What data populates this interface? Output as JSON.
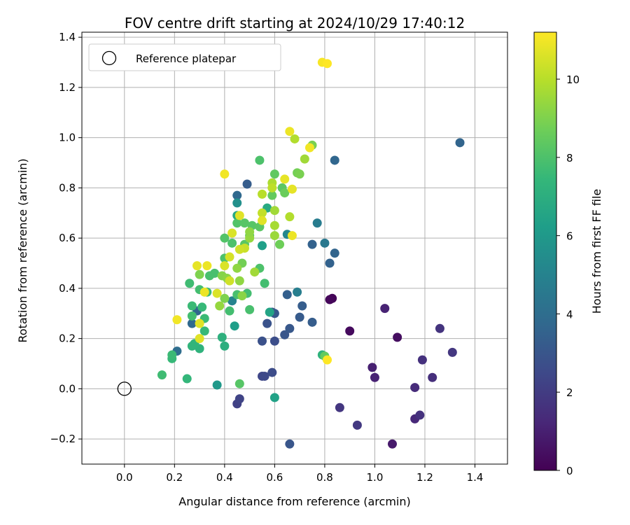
{
  "chart_data": {
    "type": "scatter",
    "title": "FOV centre drift starting at 2024/10/29 17:40:12",
    "xlabel": "Angular distance from reference (arcmin)",
    "ylabel": "Rotation from reference (arcmin)",
    "xlim": [
      -0.17,
      1.53
    ],
    "ylim": [
      -0.3,
      1.42
    ],
    "x_ticks": [
      0.0,
      0.2,
      0.4,
      0.6,
      0.8,
      1.0,
      1.2,
      1.4
    ],
    "x_tick_labels": [
      "0.0",
      "0.2",
      "0.4",
      "0.6",
      "0.8",
      "1.0",
      "1.2",
      "1.4"
    ],
    "y_ticks": [
      -0.2,
      0.0,
      0.2,
      0.4,
      0.6,
      0.8,
      1.0,
      1.2,
      1.4
    ],
    "y_tick_labels": [
      "−0.2",
      "0.0",
      "0.2",
      "0.4",
      "0.6",
      "0.8",
      "1.0",
      "1.2",
      "1.4"
    ],
    "grid": true,
    "legend": {
      "placement": "top-left",
      "entries": [
        "Reference platepar"
      ]
    },
    "reference_point": {
      "x": 0.0,
      "y": 0.0
    },
    "colorbar": {
      "label": "Hours from first FF file",
      "colormap": "viridis",
      "range": [
        0,
        11.2
      ],
      "ticks": [
        0,
        2,
        4,
        6,
        8,
        10
      ],
      "tick_labels": [
        "0",
        "2",
        "4",
        "6",
        "8",
        "10"
      ]
    },
    "colors": {
      "viridis": [
        "#440154",
        "#482878",
        "#3e4989",
        "#31688e",
        "#26828e",
        "#1f9e89",
        "#35b779",
        "#6ece58",
        "#b5de2b",
        "#fde725"
      ]
    },
    "points": [
      [
        0.83,
        0.36,
        0.1
      ],
      [
        0.82,
        0.355,
        0.2
      ],
      [
        0.9,
        0.23,
        0.3
      ],
      [
        1.09,
        0.205,
        0.4
      ],
      [
        1.07,
        -0.22,
        0.8
      ],
      [
        0.99,
        0.085,
        1.0
      ],
      [
        1.0,
        0.045,
        1.1
      ],
      [
        1.04,
        0.32,
        1.1
      ],
      [
        1.16,
        -0.12,
        1.3
      ],
      [
        1.16,
        0.005,
        1.4
      ],
      [
        1.18,
        -0.105,
        1.6
      ],
      [
        1.19,
        0.115,
        1.6
      ],
      [
        1.23,
        0.045,
        1.5
      ],
      [
        1.26,
        0.24,
        1.7
      ],
      [
        1.31,
        0.145,
        1.8
      ],
      [
        0.86,
        -0.075,
        1.8
      ],
      [
        0.93,
        -0.145,
        1.9
      ],
      [
        0.45,
        -0.06,
        2.2
      ],
      [
        0.46,
        -0.04,
        2.3
      ],
      [
        0.55,
        0.05,
        2.4
      ],
      [
        0.56,
        0.05,
        2.5
      ],
      [
        0.59,
        0.065,
        2.6
      ],
      [
        0.6,
        0.19,
        2.7
      ],
      [
        0.55,
        0.19,
        2.8
      ],
      [
        0.57,
        0.26,
        2.9
      ],
      [
        0.59,
        0.305,
        3.0
      ],
      [
        0.6,
        0.3,
        3.1
      ],
      [
        0.64,
        0.215,
        3.0
      ],
      [
        0.66,
        0.24,
        3.1
      ],
      [
        0.7,
        0.285,
        3.2
      ],
      [
        0.71,
        0.33,
        3.3
      ],
      [
        0.75,
        0.265,
        3.3
      ],
      [
        0.66,
        -0.22,
        3.0
      ],
      [
        0.65,
        0.375,
        3.4
      ],
      [
        0.75,
        0.575,
        3.5
      ],
      [
        0.82,
        0.5,
        3.5
      ],
      [
        0.84,
        0.54,
        3.6
      ],
      [
        0.84,
        0.91,
        3.7
      ],
      [
        1.34,
        0.98,
        3.6
      ],
      [
        0.29,
        0.31,
        3.6
      ],
      [
        0.27,
        0.26,
        3.8
      ],
      [
        0.21,
        0.15,
        4.0
      ],
      [
        0.49,
        0.815,
        3.3
      ],
      [
        0.45,
        0.77,
        3.8
      ],
      [
        0.8,
        0.58,
        4.5
      ],
      [
        0.77,
        0.66,
        4.7
      ],
      [
        0.69,
        0.385,
        4.8
      ],
      [
        0.43,
        0.35,
        5.0
      ],
      [
        0.65,
        0.615,
        5.2
      ],
      [
        0.45,
        0.74,
        5.6
      ],
      [
        0.37,
        0.015,
        6.0
      ],
      [
        0.44,
        0.25,
        6.2
      ],
      [
        0.6,
        -0.035,
        6.4
      ],
      [
        0.55,
        0.57,
        6.3
      ],
      [
        0.58,
        0.305,
        6.5
      ],
      [
        0.45,
        0.69,
        6.7
      ],
      [
        0.57,
        0.72,
        6.8
      ],
      [
        0.4,
        0.17,
        7.0
      ],
      [
        0.39,
        0.205,
        7.1
      ],
      [
        0.3,
        0.16,
        7.2
      ],
      [
        0.28,
        0.18,
        7.3
      ],
      [
        0.27,
        0.17,
        7.3
      ],
      [
        0.25,
        0.04,
        7.4
      ],
      [
        0.19,
        0.12,
        7.5
      ],
      [
        0.19,
        0.135,
        7.6
      ],
      [
        0.15,
        0.055,
        7.7
      ],
      [
        0.32,
        0.23,
        7.5
      ],
      [
        0.32,
        0.28,
        7.6
      ],
      [
        0.31,
        0.325,
        7.5
      ],
      [
        0.27,
        0.33,
        7.6
      ],
      [
        0.27,
        0.29,
        7.8
      ],
      [
        0.26,
        0.42,
        7.7
      ],
      [
        0.3,
        0.395,
        7.8
      ],
      [
        0.33,
        0.385,
        7.6
      ],
      [
        0.34,
        0.45,
        7.9
      ],
      [
        0.36,
        0.46,
        7.9
      ],
      [
        0.42,
        0.31,
        7.8
      ],
      [
        0.45,
        0.375,
        7.9
      ],
      [
        0.49,
        0.38,
        7.8
      ],
      [
        0.5,
        0.315,
        7.9
      ],
      [
        0.56,
        0.42,
        7.8
      ],
      [
        0.54,
        0.48,
        8.0
      ],
      [
        0.4,
        0.52,
        8.0
      ],
      [
        0.4,
        0.6,
        8.1
      ],
      [
        0.43,
        0.58,
        8.0
      ],
      [
        0.45,
        0.66,
        8.1
      ],
      [
        0.48,
        0.66,
        8.2
      ],
      [
        0.48,
        0.575,
        8.3
      ],
      [
        0.51,
        0.65,
        8.2
      ],
      [
        0.5,
        0.61,
        8.4
      ],
      [
        0.54,
        0.645,
        8.3
      ],
      [
        0.54,
        0.91,
        8.0
      ],
      [
        0.59,
        0.77,
        8.5
      ],
      [
        0.6,
        0.855,
        8.4
      ],
      [
        0.63,
        0.8,
        8.3
      ],
      [
        0.64,
        0.78,
        8.6
      ],
      [
        0.69,
        0.86,
        8.8
      ],
      [
        0.7,
        0.855,
        8.9
      ],
      [
        0.75,
        0.97,
        8.9
      ],
      [
        0.62,
        0.575,
        8.7
      ],
      [
        0.47,
        0.5,
        8.8
      ],
      [
        0.46,
        0.02,
        8.2
      ],
      [
        0.79,
        0.135,
        7.2
      ],
      [
        0.8,
        0.13,
        8.5
      ],
      [
        0.3,
        0.455,
        9.0
      ],
      [
        0.39,
        0.45,
        9.1
      ],
      [
        0.41,
        0.44,
        9.2
      ],
      [
        0.46,
        0.43,
        9.3
      ],
      [
        0.47,
        0.37,
        9.2
      ],
      [
        0.38,
        0.33,
        9.4
      ],
      [
        0.45,
        0.48,
        9.3
      ],
      [
        0.5,
        0.6,
        9.4
      ],
      [
        0.5,
        0.625,
        9.3
      ],
      [
        0.52,
        0.465,
        9.6
      ],
      [
        0.6,
        0.61,
        9.5
      ],
      [
        0.6,
        0.71,
        9.6
      ],
      [
        0.59,
        0.82,
        9.8
      ],
      [
        0.6,
        0.65,
        9.7
      ],
      [
        0.66,
        0.685,
        9.9
      ],
      [
        0.68,
        0.995,
        9.9
      ],
      [
        0.72,
        0.915,
        9.6
      ],
      [
        0.55,
        0.775,
        10.0
      ],
      [
        0.59,
        0.8,
        10.1
      ],
      [
        0.55,
        0.7,
        10.2
      ],
      [
        0.48,
        0.56,
        10.3
      ],
      [
        0.46,
        0.555,
        10.4
      ],
      [
        0.42,
        0.525,
        10.5
      ],
      [
        0.42,
        0.43,
        10.4
      ],
      [
        0.4,
        0.49,
        10.6
      ],
      [
        0.43,
        0.62,
        10.6
      ],
      [
        0.46,
        0.69,
        10.7
      ],
      [
        0.55,
        0.67,
        10.7
      ],
      [
        0.64,
        0.835,
        10.8
      ],
      [
        0.67,
        0.795,
        10.8
      ],
      [
        0.67,
        0.61,
        10.9
      ],
      [
        0.66,
        1.025,
        10.9
      ],
      [
        0.74,
        0.96,
        11.0
      ],
      [
        0.79,
        1.3,
        11.1
      ],
      [
        0.81,
        1.295,
        11.2
      ],
      [
        0.4,
        0.855,
        11.0
      ],
      [
        0.29,
        0.49,
        10.8
      ],
      [
        0.33,
        0.49,
        10.9
      ],
      [
        0.32,
        0.385,
        10.9
      ],
      [
        0.37,
        0.38,
        10.6
      ],
      [
        0.3,
        0.2,
        10.7
      ],
      [
        0.3,
        0.26,
        10.7
      ],
      [
        0.21,
        0.275,
        11.0
      ],
      [
        0.81,
        0.115,
        11.2
      ],
      [
        0.4,
        0.36,
        9.0
      ]
    ]
  }
}
